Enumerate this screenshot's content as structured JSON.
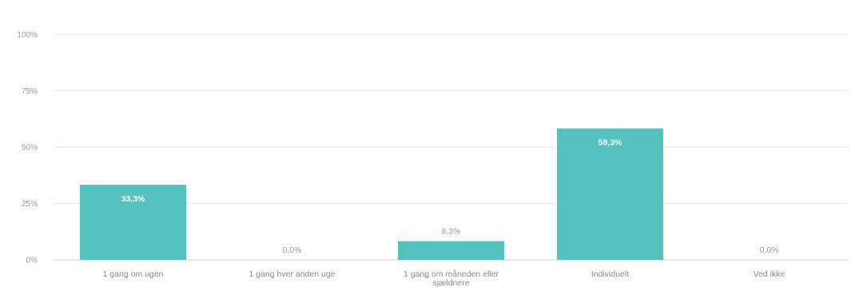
{
  "chart_data": {
    "type": "bar",
    "categories": [
      [
        "1 gang om ugen"
      ],
      [
        "1 gang hver anden uge"
      ],
      [
        "1 gang om måneden eller",
        "sjældnere"
      ],
      [
        "Individuelt"
      ],
      [
        "Ved ikke"
      ]
    ],
    "values": [
      33.3,
      0.0,
      8.3,
      58.3,
      0.0
    ],
    "value_labels": [
      "33,3%",
      "0,0%",
      "8,3%",
      "58,3%",
      "0,0%"
    ],
    "y_ticks": [
      0,
      25,
      50,
      75,
      100
    ],
    "y_tick_labels": [
      "0%",
      "25%",
      "50%",
      "75%",
      "100%"
    ],
    "ylim": [
      0,
      100
    ],
    "grid": true,
    "colors": {
      "bar": "#55c2bd",
      "grid": "#e6e6e6",
      "axis": "#cfcfcf"
    }
  }
}
